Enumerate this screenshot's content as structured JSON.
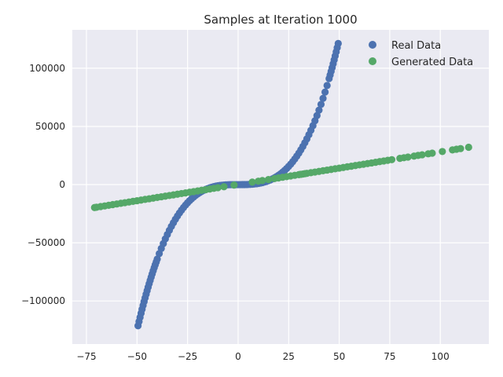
{
  "chart_data": {
    "type": "scatter",
    "title": "Samples at Iteration 1000",
    "xlabel": "",
    "ylabel": "",
    "xlim": [
      -82,
      124
    ],
    "ylim": [
      -137000,
      133000
    ],
    "xticks": [
      -75,
      -50,
      -25,
      0,
      25,
      50,
      75,
      100
    ],
    "xtick_labels": [
      "−75",
      "−50",
      "−25",
      "0",
      "25",
      "50",
      "75",
      "100"
    ],
    "yticks": [
      -100000,
      -50000,
      0,
      50000,
      100000
    ],
    "ytick_labels": [
      "−100000",
      "−50000",
      "0",
      "50000",
      "100000"
    ],
    "grid": true,
    "legend_position": "top-right",
    "series": [
      {
        "name": "Real Data",
        "color": "#4c72b0",
        "relation": "y = x^3",
        "x": [
          -49.5,
          -49,
          -48.5,
          -48,
          -47.5,
          -47,
          -46.5,
          -46,
          -45.5,
          -45,
          -44.5,
          -44,
          -43.5,
          -43,
          -42.5,
          -42,
          -41.5,
          -41,
          -40.5,
          -40,
          -39,
          -38,
          -37,
          -36,
          -35,
          -34,
          -33,
          -32,
          -31,
          -30,
          -29,
          -28,
          -27,
          -26,
          -25,
          -24,
          -23,
          -22,
          -21,
          -20,
          -19,
          -18,
          -17,
          -16,
          -15,
          -14,
          -13,
          -12,
          -11,
          -10,
          -9,
          -8,
          -7,
          -6,
          -5,
          -4,
          -3,
          -2,
          -1,
          0,
          1,
          2,
          3,
          4,
          5,
          6,
          7,
          8,
          9,
          10,
          11,
          12,
          13,
          14,
          15,
          16,
          17,
          18,
          19,
          20,
          21,
          22,
          23,
          24,
          25,
          26,
          27,
          28,
          29,
          30,
          31,
          32,
          33,
          34,
          35,
          36,
          37,
          38,
          39,
          40,
          41,
          42,
          43,
          44,
          45,
          45.5,
          46,
          46.5,
          47,
          47.5,
          48,
          48.5,
          49,
          49.5
        ]
      },
      {
        "name": "Generated Data",
        "color": "#55a868",
        "relation": "y = 280x + 150",
        "x": [
          -71,
          -70,
          -68,
          -66,
          -64,
          -62,
          -60,
          -58,
          -56,
          -54,
          -52,
          -50,
          -48,
          -46,
          -44,
          -42,
          -40,
          -38,
          -36,
          -34,
          -32,
          -30,
          -28,
          -26,
          -24,
          -22,
          -20,
          -18,
          -16,
          -14,
          -12,
          -10,
          -7,
          -2,
          7,
          10,
          12,
          15,
          18,
          20,
          22,
          24,
          26,
          28,
          30,
          31,
          32,
          33,
          34,
          36,
          38,
          40,
          42,
          44,
          46,
          48,
          50,
          52,
          54,
          56,
          58,
          60,
          62,
          64,
          66,
          68,
          70,
          72,
          74,
          76,
          80,
          82,
          84,
          87,
          89,
          91,
          94,
          96,
          101,
          106,
          108,
          110,
          114
        ]
      }
    ]
  }
}
